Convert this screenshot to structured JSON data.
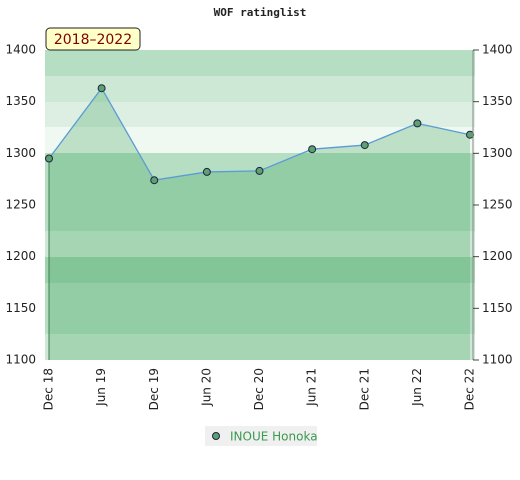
{
  "chart_data": {
    "type": "line",
    "title": "WOF ratinglist",
    "badge": "2018–2022",
    "categories": [
      "Dec 18",
      "Jun 19",
      "Dec 19",
      "Jun 20",
      "Dec 20",
      "Jun 21",
      "Dec 21",
      "Jun 22",
      "Dec 22"
    ],
    "series": [
      {
        "name": "INOUE Honoka",
        "color": "#5b9bd5",
        "marker_color": "#5aa36f",
        "values": [
          1295,
          1363,
          1274,
          1282,
          1283,
          1304,
          1308,
          1329,
          1318
        ]
      }
    ],
    "ylim": [
      1100,
      1400
    ],
    "yticks": [
      1100,
      1150,
      1200,
      1250,
      1300,
      1350,
      1400
    ]
  }
}
